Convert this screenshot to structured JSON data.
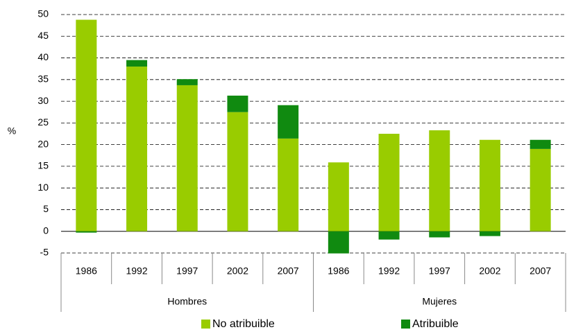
{
  "chart_data": {
    "type": "bar",
    "stacked": true,
    "y_label": "%",
    "categories": [
      "1986",
      "1992",
      "1997",
      "2002",
      "2007",
      "1986",
      "1992",
      "1997",
      "2002",
      "2007"
    ],
    "groups": [
      "Hombres",
      "Mujeres"
    ],
    "series": [
      {
        "name": "No atribuible",
        "color": "#99cc00",
        "values": [
          48.8,
          38.0,
          33.7,
          27.5,
          21.4,
          15.9,
          22.5,
          23.3,
          21.1,
          19.0
        ]
      },
      {
        "name": "Atribuible",
        "color": "#108a10",
        "values": [
          -0.3,
          1.5,
          1.4,
          3.8,
          7.7,
          -5.1,
          -1.9,
          -1.4,
          -1.1,
          2.1
        ]
      }
    ],
    "ylim": [
      -5,
      50
    ],
    "yticks": [
      -5,
      0,
      5,
      10,
      15,
      20,
      25,
      30,
      35,
      40,
      45,
      50
    ],
    "grid": true
  }
}
